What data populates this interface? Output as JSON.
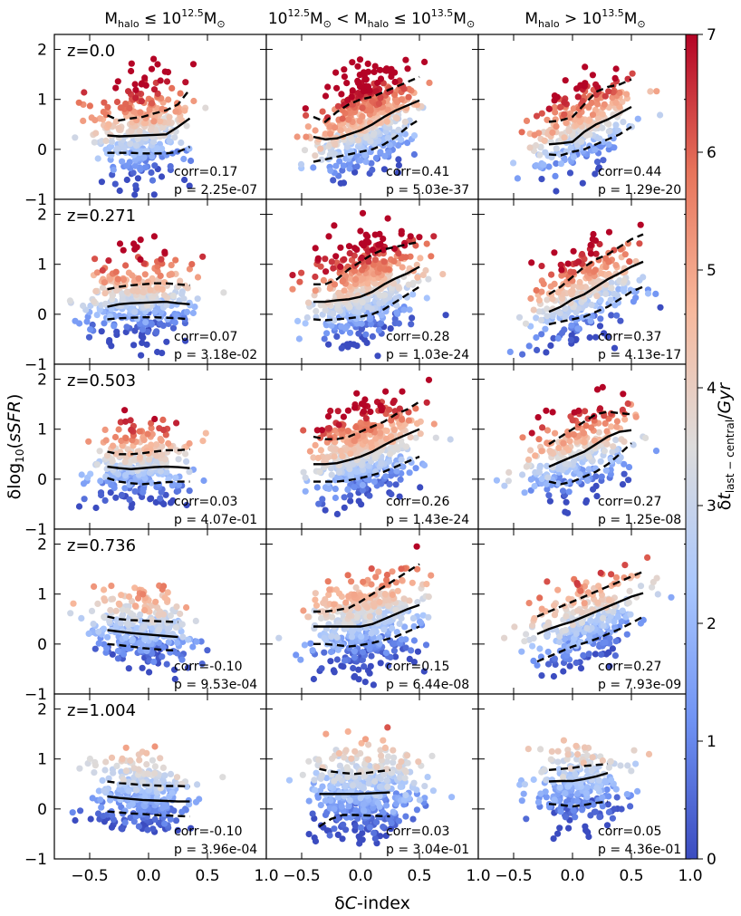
{
  "chart_data": {
    "type": "scatter",
    "layout": "5 rows x 3 columns grid of scatter panels",
    "x_axis": {
      "label": "δC-index",
      "lim": [
        -0.8,
        1.0
      ],
      "ticks": [
        -0.5,
        0.0,
        0.5,
        1.0
      ],
      "tick_labels": [
        "−0.5",
        "0.0",
        "0.5",
        "1.0"
      ]
    },
    "y_axis": {
      "label": "δlog10(sSFR)",
      "lim": [
        -1,
        2.3
      ],
      "ticks": [
        -1,
        0,
        1,
        2
      ],
      "tick_labels": [
        "−1",
        "0",
        "1",
        "2"
      ]
    },
    "colorbar": {
      "label": "δt_last−central / Gyr",
      "range": [
        0,
        7
      ],
      "ticks": [
        0,
        1,
        2,
        3,
        4,
        5,
        6,
        7
      ],
      "colormap": "coolwarm",
      "colormap_stops": [
        "#3b4cc0",
        "#6f92f3",
        "#aac7fd",
        "#dddcdc",
        "#f7b89c",
        "#e7745b",
        "#b40426"
      ]
    },
    "columns": [
      {
        "prefix": "M",
        "sub": "halo",
        "rel1": " ≤ 10",
        "sup1": "12.5",
        "unit": "M",
        "rel2": "",
        "sup2": "",
        "unit2": ""
      },
      {
        "prefix": "10",
        "sup0": "12.5",
        "unit0": "M",
        "rel0": " < M",
        "sub": "halo",
        "rel1": " ≤ 10",
        "sup1": "13.5",
        "unit": "M"
      },
      {
        "prefix": "M",
        "sub": "halo",
        "rel1": " > 10",
        "sup1": "13.5",
        "unit": "M"
      }
    ],
    "col_titles_plain": [
      "M_halo ≤ 10^12.5 M⊙",
      "10^12.5 M⊙ < M_halo ≤ 10^13.5 M⊙",
      "M_halo > 10^13.5 M⊙"
    ],
    "rows": [
      "z=0.0",
      "z=0.271",
      "z=0.503",
      "z=0.736",
      "z=1.004"
    ],
    "panels": [
      {
        "row": 0,
        "col": 0,
        "corr": "corr=0.17",
        "p": "p = 2.25e-07",
        "seed": 11,
        "n": 360,
        "xc": -0.05,
        "xs": 0.2,
        "yc": 0.4,
        "slope": 0.35,
        "ys": 0.5,
        "ctm": 3.6,
        "cts": 2.2,
        "lines": {
          "x": [
            -0.35,
            -0.25,
            -0.15,
            -0.05,
            0.05,
            0.15,
            0.25,
            0.35
          ],
          "median": [
            0.28,
            0.26,
            0.27,
            0.28,
            0.29,
            0.3,
            0.45,
            0.62
          ],
          "upper": [
            0.68,
            0.58,
            0.62,
            0.65,
            0.72,
            0.78,
            0.9,
            1.2
          ],
          "lower": [
            -0.07,
            -0.07,
            -0.07,
            -0.08,
            -0.08,
            -0.08,
            -0.05,
            0.05
          ]
        }
      },
      {
        "row": 0,
        "col": 1,
        "corr": "corr=0.41",
        "p": "p = 5.03e-37",
        "seed": 12,
        "n": 520,
        "xc": 0.05,
        "xs": 0.22,
        "yc": 0.55,
        "slope": 0.9,
        "ys": 0.48,
        "ctm": 4.2,
        "cts": 2.3,
        "lines": {
          "x": [
            -0.4,
            -0.3,
            -0.2,
            -0.1,
            0.0,
            0.1,
            0.2,
            0.3,
            0.4,
            0.5
          ],
          "median": [
            0.25,
            0.2,
            0.22,
            0.3,
            0.38,
            0.5,
            0.65,
            0.78,
            0.88,
            0.98
          ],
          "upper": [
            0.65,
            0.55,
            0.75,
            0.9,
            1.0,
            1.05,
            1.15,
            1.25,
            1.35,
            1.45
          ],
          "lower": [
            -0.25,
            -0.2,
            -0.15,
            -0.1,
            -0.05,
            0.0,
            0.1,
            0.25,
            0.45,
            0.6
          ]
        }
      },
      {
        "row": 0,
        "col": 2,
        "corr": "corr=0.44",
        "p": "p = 1.29e-20",
        "seed": 13,
        "n": 300,
        "xc": 0.08,
        "xs": 0.22,
        "yc": 0.45,
        "slope": 0.9,
        "ys": 0.45,
        "ctm": 3.8,
        "cts": 2.2,
        "lines": {
          "x": [
            -0.2,
            -0.1,
            0.0,
            0.1,
            0.2,
            0.3,
            0.4,
            0.5
          ],
          "median": [
            0.1,
            0.12,
            0.15,
            0.35,
            0.5,
            0.6,
            0.72,
            0.85
          ],
          "upper": [
            0.55,
            0.58,
            0.65,
            0.9,
            1.15,
            1.25,
            1.3,
            1.4
          ],
          "lower": [
            -0.1,
            -0.12,
            -0.05,
            0.0,
            0.1,
            0.2,
            0.3,
            0.45
          ]
        }
      },
      {
        "row": 1,
        "col": 0,
        "corr": "corr=0.07",
        "p": "p = 3.18e-02",
        "seed": 21,
        "n": 360,
        "xc": -0.05,
        "xs": 0.22,
        "yc": 0.3,
        "slope": 0.15,
        "ys": 0.4,
        "ctm": 3.0,
        "cts": 2.0,
        "lines": {
          "x": [
            -0.35,
            -0.25,
            -0.15,
            -0.05,
            0.05,
            0.15,
            0.25,
            0.35
          ],
          "median": [
            0.15,
            0.2,
            0.22,
            0.23,
            0.24,
            0.25,
            0.22,
            0.2
          ],
          "upper": [
            0.5,
            0.55,
            0.58,
            0.6,
            0.62,
            0.62,
            0.6,
            0.58
          ],
          "lower": [
            -0.1,
            -0.08,
            -0.07,
            -0.06,
            -0.06,
            -0.07,
            -0.08,
            -0.1
          ]
        }
      },
      {
        "row": 1,
        "col": 1,
        "corr": "corr=0.28",
        "p": "p = 1.03e-24",
        "seed": 22,
        "n": 520,
        "xc": 0.05,
        "xs": 0.22,
        "yc": 0.5,
        "slope": 0.6,
        "ys": 0.48,
        "ctm": 3.8,
        "cts": 2.2,
        "lines": {
          "x": [
            -0.4,
            -0.3,
            -0.2,
            -0.1,
            0.0,
            0.1,
            0.2,
            0.3,
            0.4,
            0.5
          ],
          "median": [
            0.25,
            0.25,
            0.28,
            0.3,
            0.35,
            0.45,
            0.6,
            0.72,
            0.82,
            0.95
          ],
          "upper": [
            0.6,
            0.6,
            0.7,
            0.9,
            1.05,
            1.2,
            1.3,
            1.35,
            1.4,
            1.45
          ],
          "lower": [
            -0.1,
            -0.12,
            -0.1,
            -0.08,
            -0.05,
            0.0,
            0.1,
            0.25,
            0.4,
            0.55
          ]
        }
      },
      {
        "row": 1,
        "col": 2,
        "corr": "corr=0.37",
        "p": "p = 4.13e-17",
        "seed": 23,
        "n": 320,
        "xc": 0.1,
        "xs": 0.22,
        "yc": 0.4,
        "slope": 0.9,
        "ys": 0.45,
        "ctm": 3.4,
        "cts": 2.2,
        "lines": {
          "x": [
            -0.2,
            -0.1,
            0.0,
            0.1,
            0.2,
            0.3,
            0.4,
            0.5,
            0.6
          ],
          "median": [
            0.05,
            0.15,
            0.3,
            0.4,
            0.55,
            0.7,
            0.82,
            0.95,
            1.05
          ],
          "upper": [
            0.4,
            0.55,
            0.75,
            0.95,
            1.1,
            1.2,
            1.35,
            1.5,
            1.6
          ],
          "lower": [
            -0.2,
            -0.15,
            -0.1,
            -0.05,
            0.05,
            0.15,
            0.3,
            0.45,
            0.55
          ]
        }
      },
      {
        "row": 2,
        "col": 0,
        "corr": "corr=0.03",
        "p": "p = 4.07e-01",
        "seed": 31,
        "n": 330,
        "xc": -0.05,
        "xs": 0.2,
        "yc": 0.3,
        "slope": 0.05,
        "ys": 0.38,
        "ctm": 2.9,
        "cts": 1.9,
        "lines": {
          "x": [
            -0.35,
            -0.25,
            -0.15,
            -0.05,
            0.05,
            0.15,
            0.25,
            0.35
          ],
          "median": [
            0.25,
            0.22,
            0.2,
            0.22,
            0.24,
            0.25,
            0.24,
            0.22
          ],
          "upper": [
            0.55,
            0.5,
            0.5,
            0.52,
            0.55,
            0.58,
            0.58,
            0.6
          ],
          "lower": [
            0.02,
            -0.05,
            -0.08,
            -0.1,
            -0.08,
            -0.06,
            -0.05,
            -0.05
          ]
        }
      },
      {
        "row": 2,
        "col": 1,
        "corr": "corr=0.26",
        "p": "p = 1.43e-24",
        "seed": 32,
        "n": 520,
        "xc": 0.05,
        "xs": 0.22,
        "yc": 0.55,
        "slope": 0.6,
        "ys": 0.45,
        "ctm": 3.5,
        "cts": 2.1,
        "lines": {
          "x": [
            -0.4,
            -0.3,
            -0.2,
            -0.1,
            0.0,
            0.1,
            0.2,
            0.3,
            0.4,
            0.5
          ],
          "median": [
            0.3,
            0.3,
            0.32,
            0.38,
            0.45,
            0.55,
            0.68,
            0.8,
            0.9,
            1.0
          ],
          "upper": [
            0.85,
            0.8,
            0.8,
            0.85,
            0.95,
            1.05,
            1.15,
            1.3,
            1.4,
            1.55
          ],
          "lower": [
            -0.05,
            -0.05,
            -0.05,
            -0.02,
            0.02,
            0.08,
            0.15,
            0.25,
            0.35,
            0.45
          ]
        }
      },
      {
        "row": 2,
        "col": 2,
        "corr": "corr=0.27",
        "p": "p = 1.25e-08",
        "seed": 33,
        "n": 300,
        "xc": 0.05,
        "xs": 0.22,
        "yc": 0.45,
        "slope": 0.6,
        "ys": 0.42,
        "ctm": 3.1,
        "cts": 2.0,
        "lines": {
          "x": [
            -0.2,
            -0.1,
            0.0,
            0.1,
            0.2,
            0.3,
            0.4,
            0.5
          ],
          "median": [
            0.25,
            0.35,
            0.45,
            0.55,
            0.7,
            0.85,
            0.95,
            0.98
          ],
          "upper": [
            0.7,
            0.85,
            1.0,
            1.15,
            1.3,
            1.35,
            1.32,
            1.3
          ],
          "lower": [
            -0.05,
            -0.1,
            -0.05,
            0.05,
            0.15,
            0.3,
            0.5,
            0.72
          ]
        }
      },
      {
        "row": 3,
        "col": 0,
        "corr": "corr=-0.10",
        "p": "p = 9.53e-04",
        "seed": 41,
        "n": 330,
        "xc": -0.05,
        "xs": 0.2,
        "yc": 0.3,
        "slope": -0.15,
        "ys": 0.38,
        "ctm": 2.4,
        "cts": 1.6,
        "lines": {
          "x": [
            -0.35,
            -0.25,
            -0.15,
            -0.05,
            0.05,
            0.15,
            0.25
          ],
          "median": [
            0.28,
            0.25,
            0.22,
            0.2,
            0.18,
            0.16,
            0.14
          ],
          "upper": [
            0.55,
            0.5,
            0.48,
            0.47,
            0.46,
            0.45,
            0.44
          ],
          "lower": [
            0.0,
            -0.02,
            -0.05,
            -0.08,
            -0.1,
            -0.12,
            -0.13
          ]
        }
      },
      {
        "row": 3,
        "col": 1,
        "corr": "corr=0.15",
        "p": "p = 6.44e-08",
        "seed": 42,
        "n": 480,
        "xc": 0.05,
        "xs": 0.22,
        "yc": 0.45,
        "slope": 0.4,
        "ys": 0.45,
        "ctm": 2.7,
        "cts": 1.7,
        "lines": {
          "x": [
            -0.4,
            -0.3,
            -0.2,
            -0.1,
            0.0,
            0.1,
            0.2,
            0.3,
            0.4,
            0.5
          ],
          "median": [
            0.35,
            0.35,
            0.35,
            0.35,
            0.35,
            0.4,
            0.5,
            0.6,
            0.7,
            0.78
          ],
          "upper": [
            0.65,
            0.65,
            0.68,
            0.72,
            0.85,
            1.0,
            1.15,
            1.3,
            1.45,
            1.6
          ],
          "lower": [
            0.0,
            0.0,
            -0.02,
            -0.05,
            -0.02,
            0.02,
            0.08,
            0.15,
            0.25,
            0.35
          ]
        }
      },
      {
        "row": 3,
        "col": 2,
        "corr": "corr=0.27",
        "p": "p = 7.93e-09",
        "seed": 43,
        "n": 300,
        "xc": 0.1,
        "xs": 0.24,
        "yc": 0.4,
        "slope": 0.9,
        "ys": 0.42,
        "ctm": 2.6,
        "cts": 1.7,
        "lines": {
          "x": [
            -0.3,
            -0.2,
            -0.1,
            0.0,
            0.1,
            0.2,
            0.3,
            0.4,
            0.5,
            0.6
          ],
          "median": [
            0.2,
            0.3,
            0.38,
            0.45,
            0.55,
            0.65,
            0.75,
            0.85,
            0.95,
            1.02
          ],
          "upper": [
            0.55,
            0.65,
            0.75,
            0.85,
            0.95,
            1.05,
            1.15,
            1.25,
            1.35,
            1.45
          ],
          "lower": [
            -0.35,
            -0.25,
            -0.15,
            -0.05,
            0.02,
            0.1,
            0.2,
            0.3,
            0.42,
            0.55
          ]
        }
      },
      {
        "row": 4,
        "col": 0,
        "corr": "corr=-0.10",
        "p": "p = 3.96e-04",
        "seed": 51,
        "n": 320,
        "xc": -0.05,
        "xs": 0.2,
        "yc": 0.3,
        "slope": -0.15,
        "ys": 0.38,
        "ctm": 2.0,
        "cts": 1.3,
        "lines": {
          "x": [
            -0.35,
            -0.25,
            -0.15,
            -0.05,
            0.05,
            0.15,
            0.25,
            0.35
          ],
          "median": [
            0.25,
            0.22,
            0.2,
            0.18,
            0.17,
            0.16,
            0.15,
            0.15
          ],
          "upper": [
            0.55,
            0.52,
            0.5,
            0.48,
            0.47,
            0.46,
            0.46,
            0.45
          ],
          "lower": [
            -0.05,
            -0.07,
            -0.09,
            -0.1,
            -0.12,
            -0.13,
            -0.14,
            -0.15
          ]
        }
      },
      {
        "row": 4,
        "col": 1,
        "corr": "corr=0.03",
        "p": "p = 3.04e-01",
        "seed": 52,
        "n": 460,
        "xc": 0.05,
        "xs": 0.22,
        "yc": 0.35,
        "slope": 0.05,
        "ys": 0.45,
        "ctm": 2.0,
        "cts": 1.3,
        "lines": {
          "x": [
            -0.35,
            -0.25,
            -0.15,
            -0.05,
            0.05,
            0.15,
            0.25
          ],
          "median": [
            0.3,
            0.3,
            0.3,
            0.3,
            0.31,
            0.32,
            0.33
          ],
          "upper": [
            0.8,
            0.75,
            0.72,
            0.7,
            0.72,
            0.75,
            0.78
          ],
          "lower": [
            -0.35,
            -0.2,
            -0.12,
            -0.12,
            -0.13,
            -0.14,
            -0.15
          ]
        }
      },
      {
        "row": 4,
        "col": 2,
        "corr": "corr=0.05",
        "p": "p = 4.36e-01",
        "seed": 53,
        "n": 260,
        "xc": 0.05,
        "xs": 0.2,
        "yc": 0.45,
        "slope": 0.1,
        "ys": 0.4,
        "ctm": 2.0,
        "cts": 1.3,
        "lines": {
          "x": [
            -0.2,
            -0.1,
            0.0,
            0.1,
            0.2,
            0.3
          ],
          "median": [
            0.55,
            0.56,
            0.56,
            0.6,
            0.65,
            0.72
          ],
          "upper": [
            0.78,
            0.8,
            0.82,
            0.86,
            0.88,
            0.9
          ],
          "lower": [
            0.1,
            0.08,
            0.05,
            0.08,
            0.12,
            0.15
          ]
        }
      }
    ]
  }
}
